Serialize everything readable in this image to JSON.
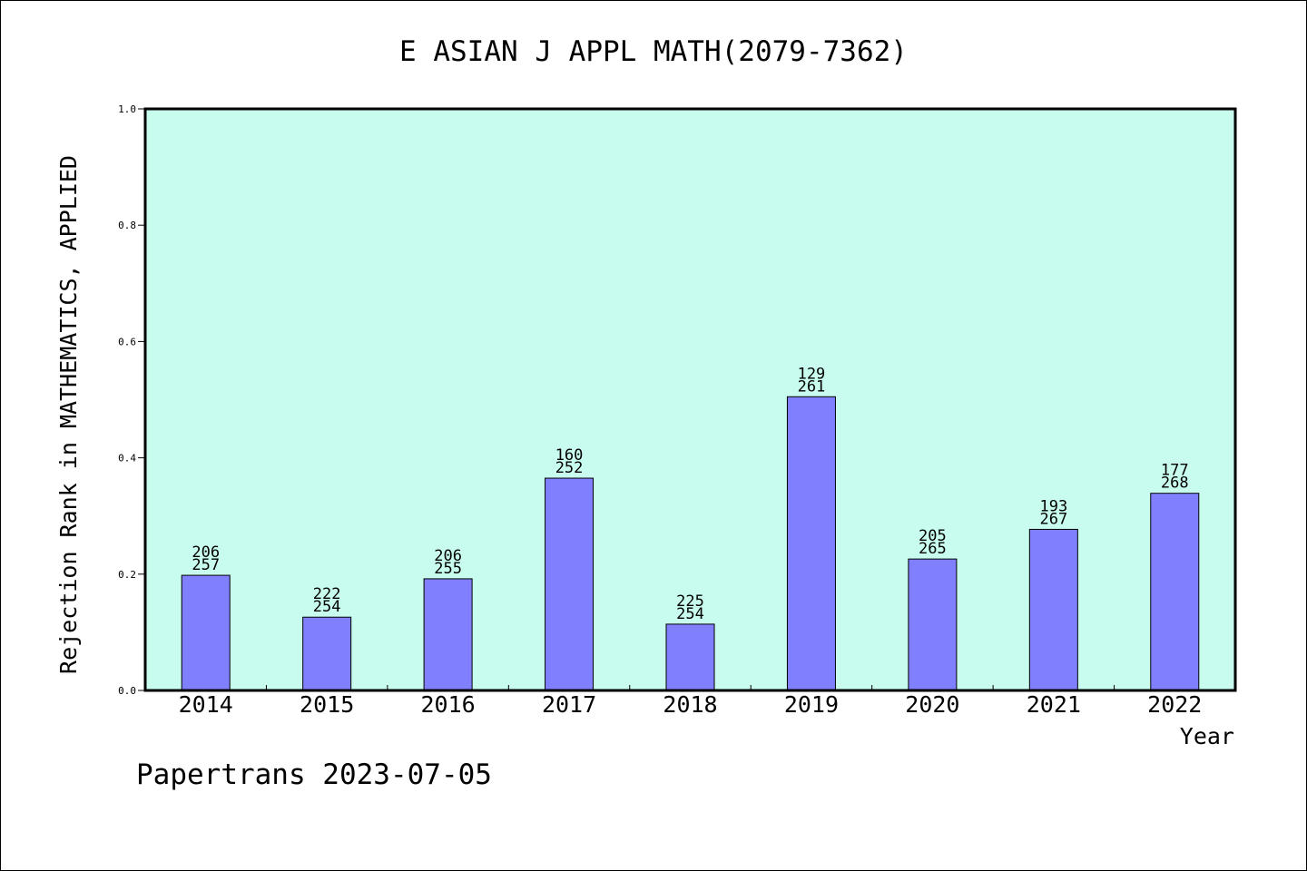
{
  "chart_data": {
    "type": "bar",
    "title": "E ASIAN J APPL MATH(2079-7362)",
    "xlabel": "Year",
    "ylabel": "Rejection Rank in MATHEMATICS, APPLIED",
    "ylim": [
      0,
      1.0
    ],
    "yticks": [
      "0.0",
      "0.2",
      "0.4",
      "0.6",
      "0.8",
      "1.0"
    ],
    "categories": [
      "2014",
      "2015",
      "2016",
      "2017",
      "2018",
      "2019",
      "2020",
      "2021",
      "2022"
    ],
    "values": [
      0.198,
      0.126,
      0.192,
      0.365,
      0.114,
      0.505,
      0.226,
      0.277,
      0.339
    ],
    "labels_top": [
      "206",
      "222",
      "206",
      "160",
      "225",
      "129",
      "205",
      "193",
      "177"
    ],
    "labels_bottom": [
      "257",
      "254",
      "255",
      "252",
      "254",
      "261",
      "265",
      "267",
      "268"
    ],
    "grid": false,
    "legend": "none",
    "colors": {
      "plot_background": "#c8fcee",
      "bar_fill": "#8080ff",
      "bar_stroke": "#000000"
    }
  },
  "footer": "Papertrans 2023-07-05"
}
